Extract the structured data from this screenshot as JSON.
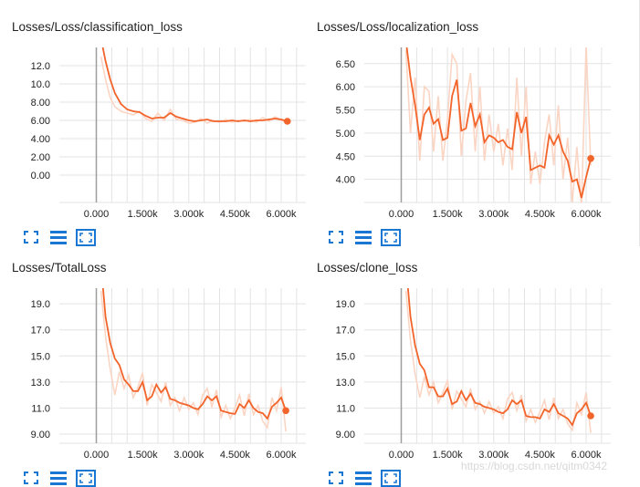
{
  "colors": {
    "line": "#f2642a",
    "raw": "#fbd5c4",
    "grid": "#e3e3e3",
    "axis": "#9e9e9e",
    "icon": "#1976d2"
  },
  "toolbar": {
    "fit_icon": "expand-fit-icon",
    "lines_icon": "toggle-lines-icon",
    "zoom_icon": "zoom-box-icon"
  },
  "watermark": "https://blog.csdn.net/qitm0342",
  "chart_data": [
    {
      "type": "line",
      "title": "Losses/Loss/classification_loss",
      "xticks": [
        "0.000",
        "1.500k",
        "3.000k",
        "4.500k",
        "6.000k"
      ],
      "yticks": [
        "0.00",
        "2.00",
        "4.00",
        "6.00",
        "8.00",
        "10.0",
        "12.0"
      ],
      "xlim": [
        -1200,
        6800
      ],
      "ylim": [
        -3,
        14
      ],
      "smoothed": {
        "x": [
          150,
          300,
          450,
          600,
          800,
          1000,
          1200,
          1400,
          1600,
          1800,
          2000,
          2200,
          2400,
          2600,
          2800,
          3000,
          3200,
          3400,
          3600,
          3800,
          4000,
          4200,
          4400,
          4600,
          4800,
          5000,
          5200,
          5400,
          5600,
          5800,
          6000,
          6200
        ],
        "y": [
          15,
          12.5,
          10.5,
          9.0,
          7.8,
          7.2,
          7.0,
          6.9,
          6.5,
          6.2,
          6.3,
          6.3,
          6.8,
          6.4,
          6.2,
          6.0,
          5.9,
          6.0,
          6.1,
          5.9,
          5.9,
          5.9,
          6.0,
          5.9,
          6.0,
          5.9,
          6.0,
          6.0,
          6.1,
          6.2,
          6.1,
          5.9
        ]
      },
      "raw": {
        "x": [
          150,
          300,
          450,
          600,
          800,
          1000,
          1200,
          1400,
          1600,
          1800,
          2000,
          2200,
          2400,
          2600,
          2800,
          3000,
          3200,
          3400,
          3600,
          3800,
          4000,
          4200,
          4400,
          4600,
          4800,
          5000,
          5200,
          5400,
          5600,
          5800,
          6000,
          6200
        ],
        "y": [
          13,
          10.5,
          8.5,
          7.5,
          7.0,
          6.8,
          6.6,
          7.0,
          6.2,
          5.9,
          6.8,
          6.0,
          7.2,
          6.1,
          6.0,
          5.7,
          5.8,
          6.2,
          5.7,
          6.0,
          5.8,
          6.1,
          5.8,
          6.0,
          5.9,
          6.1,
          5.8,
          6.3,
          5.9,
          6.4,
          6.0,
          5.8
        ]
      },
      "last": [
        6200,
        5.9
      ]
    },
    {
      "type": "line",
      "title": "Losses/Loss/localization_loss",
      "xticks": [
        "0.000",
        "1.500k",
        "3.000k",
        "4.500k",
        "6.000k"
      ],
      "yticks": [
        "4.00",
        "4.50",
        "5.00",
        "5.50",
        "6.00",
        "6.50"
      ],
      "xlim": [
        -1200,
        6800
      ],
      "ylim": [
        3.5,
        6.85
      ],
      "smoothed": {
        "x": [
          150,
          300,
          450,
          600,
          750,
          900,
          1050,
          1200,
          1350,
          1500,
          1650,
          1800,
          1950,
          2100,
          2250,
          2400,
          2550,
          2700,
          2850,
          3000,
          3150,
          3300,
          3450,
          3600,
          3750,
          3900,
          4050,
          4200,
          4350,
          4500,
          4650,
          4800,
          4950,
          5100,
          5250,
          5400,
          5550,
          5700,
          5850,
          6000,
          6150
        ],
        "y": [
          7.0,
          6.2,
          5.6,
          4.85,
          5.4,
          5.55,
          5.2,
          5.3,
          4.85,
          4.9,
          5.8,
          6.15,
          5.05,
          5.1,
          5.65,
          5.15,
          5.4,
          4.8,
          4.95,
          4.9,
          4.8,
          4.85,
          4.7,
          4.65,
          5.45,
          5.0,
          5.35,
          4.2,
          4.25,
          4.3,
          4.25,
          4.95,
          4.75,
          4.95,
          4.6,
          4.4,
          3.95,
          4.0,
          3.6,
          4.05,
          4.45
        ]
      },
      "raw": {
        "x": [
          150,
          300,
          450,
          600,
          750,
          900,
          1050,
          1200,
          1350,
          1500,
          1650,
          1800,
          1950,
          2100,
          2250,
          2400,
          2550,
          2700,
          2850,
          3000,
          3150,
          3300,
          3450,
          3600,
          3750,
          3900,
          4050,
          4200,
          4350,
          4500,
          4650,
          4800,
          4950,
          5100,
          5250,
          5400,
          5550,
          5700,
          5850,
          6000,
          6150
        ],
        "y": [
          6.8,
          5.0,
          6.2,
          4.4,
          6.0,
          5.9,
          4.6,
          5.8,
          4.4,
          5.3,
          6.7,
          6.5,
          4.5,
          5.7,
          6.3,
          4.6,
          6.0,
          4.4,
          5.4,
          4.6,
          5.2,
          4.3,
          5.1,
          4.2,
          6.2,
          4.5,
          6.0,
          3.9,
          4.6,
          3.9,
          4.8,
          5.4,
          4.3,
          5.6,
          4.0,
          4.9,
          3.5,
          4.7,
          3.4,
          6.9,
          4.3
        ]
      },
      "last": [
        6150,
        4.45
      ]
    },
    {
      "type": "line",
      "title": "Losses/TotalLoss",
      "xticks": [
        "0.000",
        "1.500k",
        "3.000k",
        "4.500k",
        "6.000k"
      ],
      "yticks": [
        "9.00",
        "11.0",
        "13.0",
        "15.0",
        "17.0",
        "19.0"
      ],
      "xlim": [
        -1200,
        6800
      ],
      "ylim": [
        8.3,
        20.2
      ],
      "smoothed": {
        "x": [
          150,
          300,
          450,
          600,
          750,
          900,
          1050,
          1200,
          1350,
          1500,
          1650,
          1800,
          1950,
          2100,
          2250,
          2400,
          2550,
          2700,
          2850,
          3000,
          3150,
          3300,
          3450,
          3600,
          3750,
          3900,
          4050,
          4200,
          4350,
          4500,
          4650,
          4800,
          4950,
          5100,
          5250,
          5400,
          5550,
          5700,
          5850,
          6000,
          6150
        ],
        "y": [
          22,
          18,
          16,
          14.8,
          14.3,
          13.2,
          12.8,
          12.3,
          12.3,
          13.0,
          11.6,
          11.9,
          12.8,
          12.2,
          12.6,
          11.7,
          11.6,
          11.4,
          11.3,
          11.2,
          11.0,
          10.9,
          11.3,
          11.9,
          11.6,
          11.9,
          10.8,
          10.7,
          10.6,
          10.55,
          11.3,
          11.0,
          11.6,
          11.0,
          10.7,
          10.6,
          10.2,
          11.1,
          11.4,
          11.8,
          10.8
        ]
      },
      "raw": {
        "x": [
          150,
          300,
          450,
          600,
          750,
          900,
          1050,
          1200,
          1350,
          1500,
          1650,
          1800,
          1950,
          2100,
          2250,
          2400,
          2550,
          2700,
          2850,
          3000,
          3150,
          3300,
          3450,
          3600,
          3750,
          3900,
          4050,
          4200,
          4350,
          4500,
          4650,
          4800,
          4950,
          5100,
          5250,
          5400,
          5550,
          5700,
          5850,
          6000,
          6150
        ],
        "y": [
          20,
          16.5,
          14.0,
          12.0,
          13.8,
          12.5,
          13.5,
          11.8,
          12.6,
          13.7,
          11.2,
          12.8,
          12.2,
          11.5,
          13.0,
          11.2,
          11.8,
          10.8,
          11.8,
          10.9,
          11.4,
          10.5,
          12.0,
          12.5,
          11.1,
          12.4,
          10.3,
          11.2,
          10.2,
          11.0,
          12.0,
          10.4,
          12.1,
          10.5,
          11.2,
          10.0,
          9.5,
          11.8,
          10.8,
          12.6,
          9.2
        ]
      },
      "last": [
        6150,
        10.8
      ]
    },
    {
      "type": "line",
      "title": "Losses/clone_loss",
      "xticks": [
        "0.000",
        "1.500k",
        "3.000k",
        "4.500k",
        "6.000k"
      ],
      "yticks": [
        "9.00",
        "11.0",
        "13.0",
        "15.0",
        "17.0",
        "19.0"
      ],
      "xlim": [
        -1200,
        6800
      ],
      "ylim": [
        8.3,
        20.2
      ],
      "smoothed": {
        "x": [
          150,
          300,
          450,
          600,
          750,
          900,
          1050,
          1200,
          1350,
          1500,
          1650,
          1800,
          1950,
          2100,
          2250,
          2400,
          2550,
          2700,
          2850,
          3000,
          3150,
          3300,
          3450,
          3600,
          3750,
          3900,
          4050,
          4200,
          4350,
          4500,
          4650,
          4800,
          4950,
          5100,
          5250,
          5400,
          5550,
          5700,
          5850,
          6000,
          6150
        ],
        "y": [
          22,
          18,
          15.8,
          14.4,
          13.9,
          12.6,
          12.6,
          11.9,
          11.9,
          12.5,
          11.3,
          11.5,
          12.3,
          11.6,
          12.1,
          11.4,
          11.3,
          11.1,
          11.0,
          10.9,
          10.7,
          10.6,
          10.9,
          11.6,
          11.3,
          11.6,
          10.4,
          10.3,
          10.3,
          10.2,
          10.9,
          10.7,
          11.3,
          10.6,
          10.4,
          10.2,
          9.7,
          10.6,
          10.9,
          11.4,
          10.4
        ]
      },
      "raw": {
        "x": [
          150,
          300,
          450,
          600,
          750,
          900,
          1050,
          1200,
          1350,
          1500,
          1650,
          1800,
          1950,
          2100,
          2250,
          2400,
          2550,
          2700,
          2850,
          3000,
          3150,
          3300,
          3450,
          3600,
          3750,
          3900,
          4050,
          4200,
          4350,
          4500,
          4650,
          4800,
          4950,
          5100,
          5250,
          5400,
          5550,
          5700,
          5850,
          6000,
          6150
        ],
        "y": [
          20,
          16.2,
          13.6,
          11.8,
          13.4,
          12.0,
          13.0,
          11.4,
          12.2,
          13.1,
          10.9,
          12.3,
          11.7,
          11.1,
          12.5,
          10.9,
          11.5,
          10.6,
          11.5,
          10.6,
          11.1,
          10.2,
          11.7,
          12.2,
          10.8,
          12.0,
          10.0,
          10.9,
          9.9,
          10.7,
          11.6,
          10.1,
          11.8,
          10.2,
          10.9,
          9.8,
          9.3,
          11.4,
          10.5,
          12.2,
          9.1
        ]
      },
      "last": [
        6150,
        10.4
      ]
    }
  ]
}
